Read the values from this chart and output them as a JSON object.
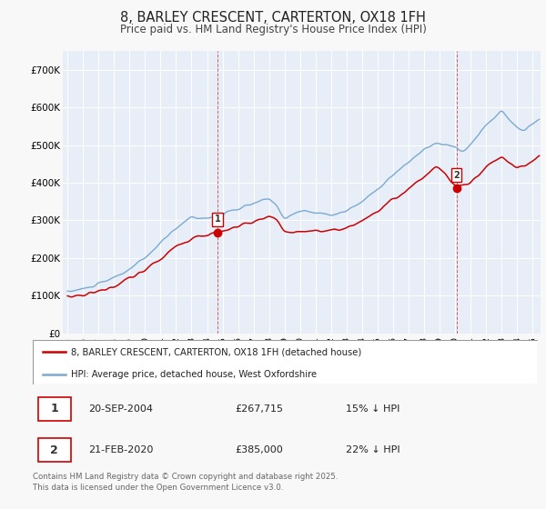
{
  "title": "8, BARLEY CRESCENT, CARTERTON, OX18 1FH",
  "subtitle": "Price paid vs. HM Land Registry's House Price Index (HPI)",
  "title_fontsize": 10.5,
  "subtitle_fontsize": 8.5,
  "background_color": "#f8f8f8",
  "plot_bg_color": "#e8eef8",
  "grid_color": "#ffffff",
  "hpi_color": "#7aaad0",
  "paid_color": "#cc0000",
  "legend_paid": "8, BARLEY CRESCENT, CARTERTON, OX18 1FH (detached house)",
  "legend_hpi": "HPI: Average price, detached house, West Oxfordshire",
  "footnote": "Contains HM Land Registry data © Crown copyright and database right 2025.\nThis data is licensed under the Open Government Licence v3.0.",
  "ylim": [
    0,
    750000
  ],
  "yticks": [
    0,
    100000,
    200000,
    300000,
    400000,
    500000,
    600000,
    700000
  ],
  "ytick_labels": [
    "£0",
    "£100K",
    "£200K",
    "£300K",
    "£400K",
    "£500K",
    "£600K",
    "£700K"
  ]
}
